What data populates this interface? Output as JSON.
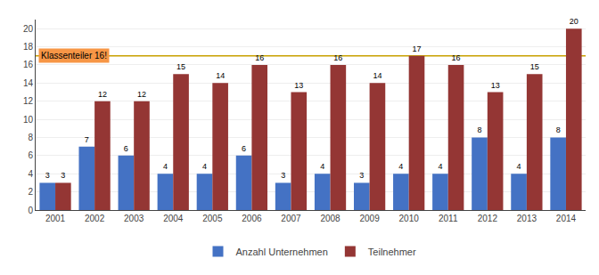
{
  "chart_data": {
    "type": "bar",
    "categories": [
      "2001",
      "2002",
      "2003",
      "2004",
      "2005",
      "2006",
      "2007",
      "2008",
      "2009",
      "2010",
      "2011",
      "2012",
      "2013",
      "2014"
    ],
    "series": [
      {
        "name": "Anzahl Unternehmen",
        "color": "#4472C4",
        "values": [
          3,
          7,
          6,
          4,
          4,
          6,
          3,
          4,
          3,
          4,
          4,
          8,
          4,
          8
        ]
      },
      {
        "name": "Teilnehmer",
        "color": "#943634",
        "values": [
          3,
          12,
          12,
          15,
          14,
          16,
          13,
          16,
          14,
          17,
          16,
          13,
          15,
          20
        ]
      }
    ],
    "ylim": [
      0,
      21
    ],
    "yticks": [
      0,
      2,
      4,
      6,
      8,
      10,
      12,
      14,
      16,
      18,
      20
    ],
    "grid": true,
    "legend": "bottom",
    "data_labels": true,
    "annotations": [
      {
        "text": "Klassenteiler 16!",
        "y": 17.0,
        "line_color": "#C8A000",
        "box_color": "#F79646"
      }
    ]
  }
}
